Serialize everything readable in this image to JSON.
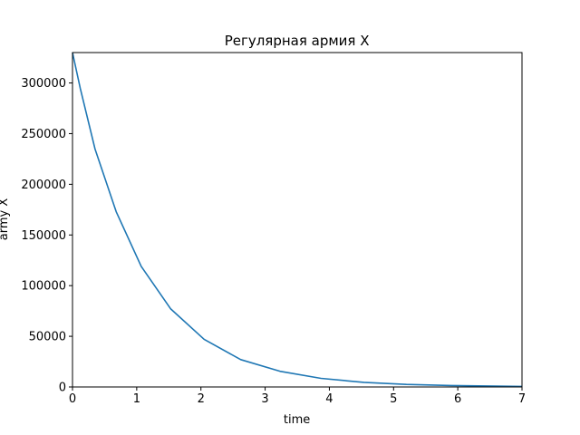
{
  "chart_data": {
    "type": "line",
    "title": "Регулярная армия X",
    "xlabel": "time",
    "ylabel": "army X",
    "xlim": [
      0,
      7
    ],
    "ylim": [
      0,
      330000
    ],
    "x_ticks": [
      "0",
      "1",
      "2",
      "3",
      "4",
      "5",
      "6",
      "7"
    ],
    "y_ticks": [
      "0",
      "50000",
      "100000",
      "150000",
      "200000",
      "250000",
      "300000"
    ],
    "grid": false,
    "series": [
      {
        "color": "#1f77b4",
        "x": [
          0,
          0.12,
          0.35,
          0.68,
          1.07,
          1.53,
          2.05,
          2.62,
          3.23,
          3.87,
          4.54,
          5.2,
          5.9,
          6.6,
          7.0
        ],
        "y": [
          330000,
          295000,
          235000,
          173000,
          119000,
          77000,
          47000,
          27000,
          15500,
          8500,
          4500,
          2500,
          1400,
          800,
          500
        ]
      }
    ]
  }
}
